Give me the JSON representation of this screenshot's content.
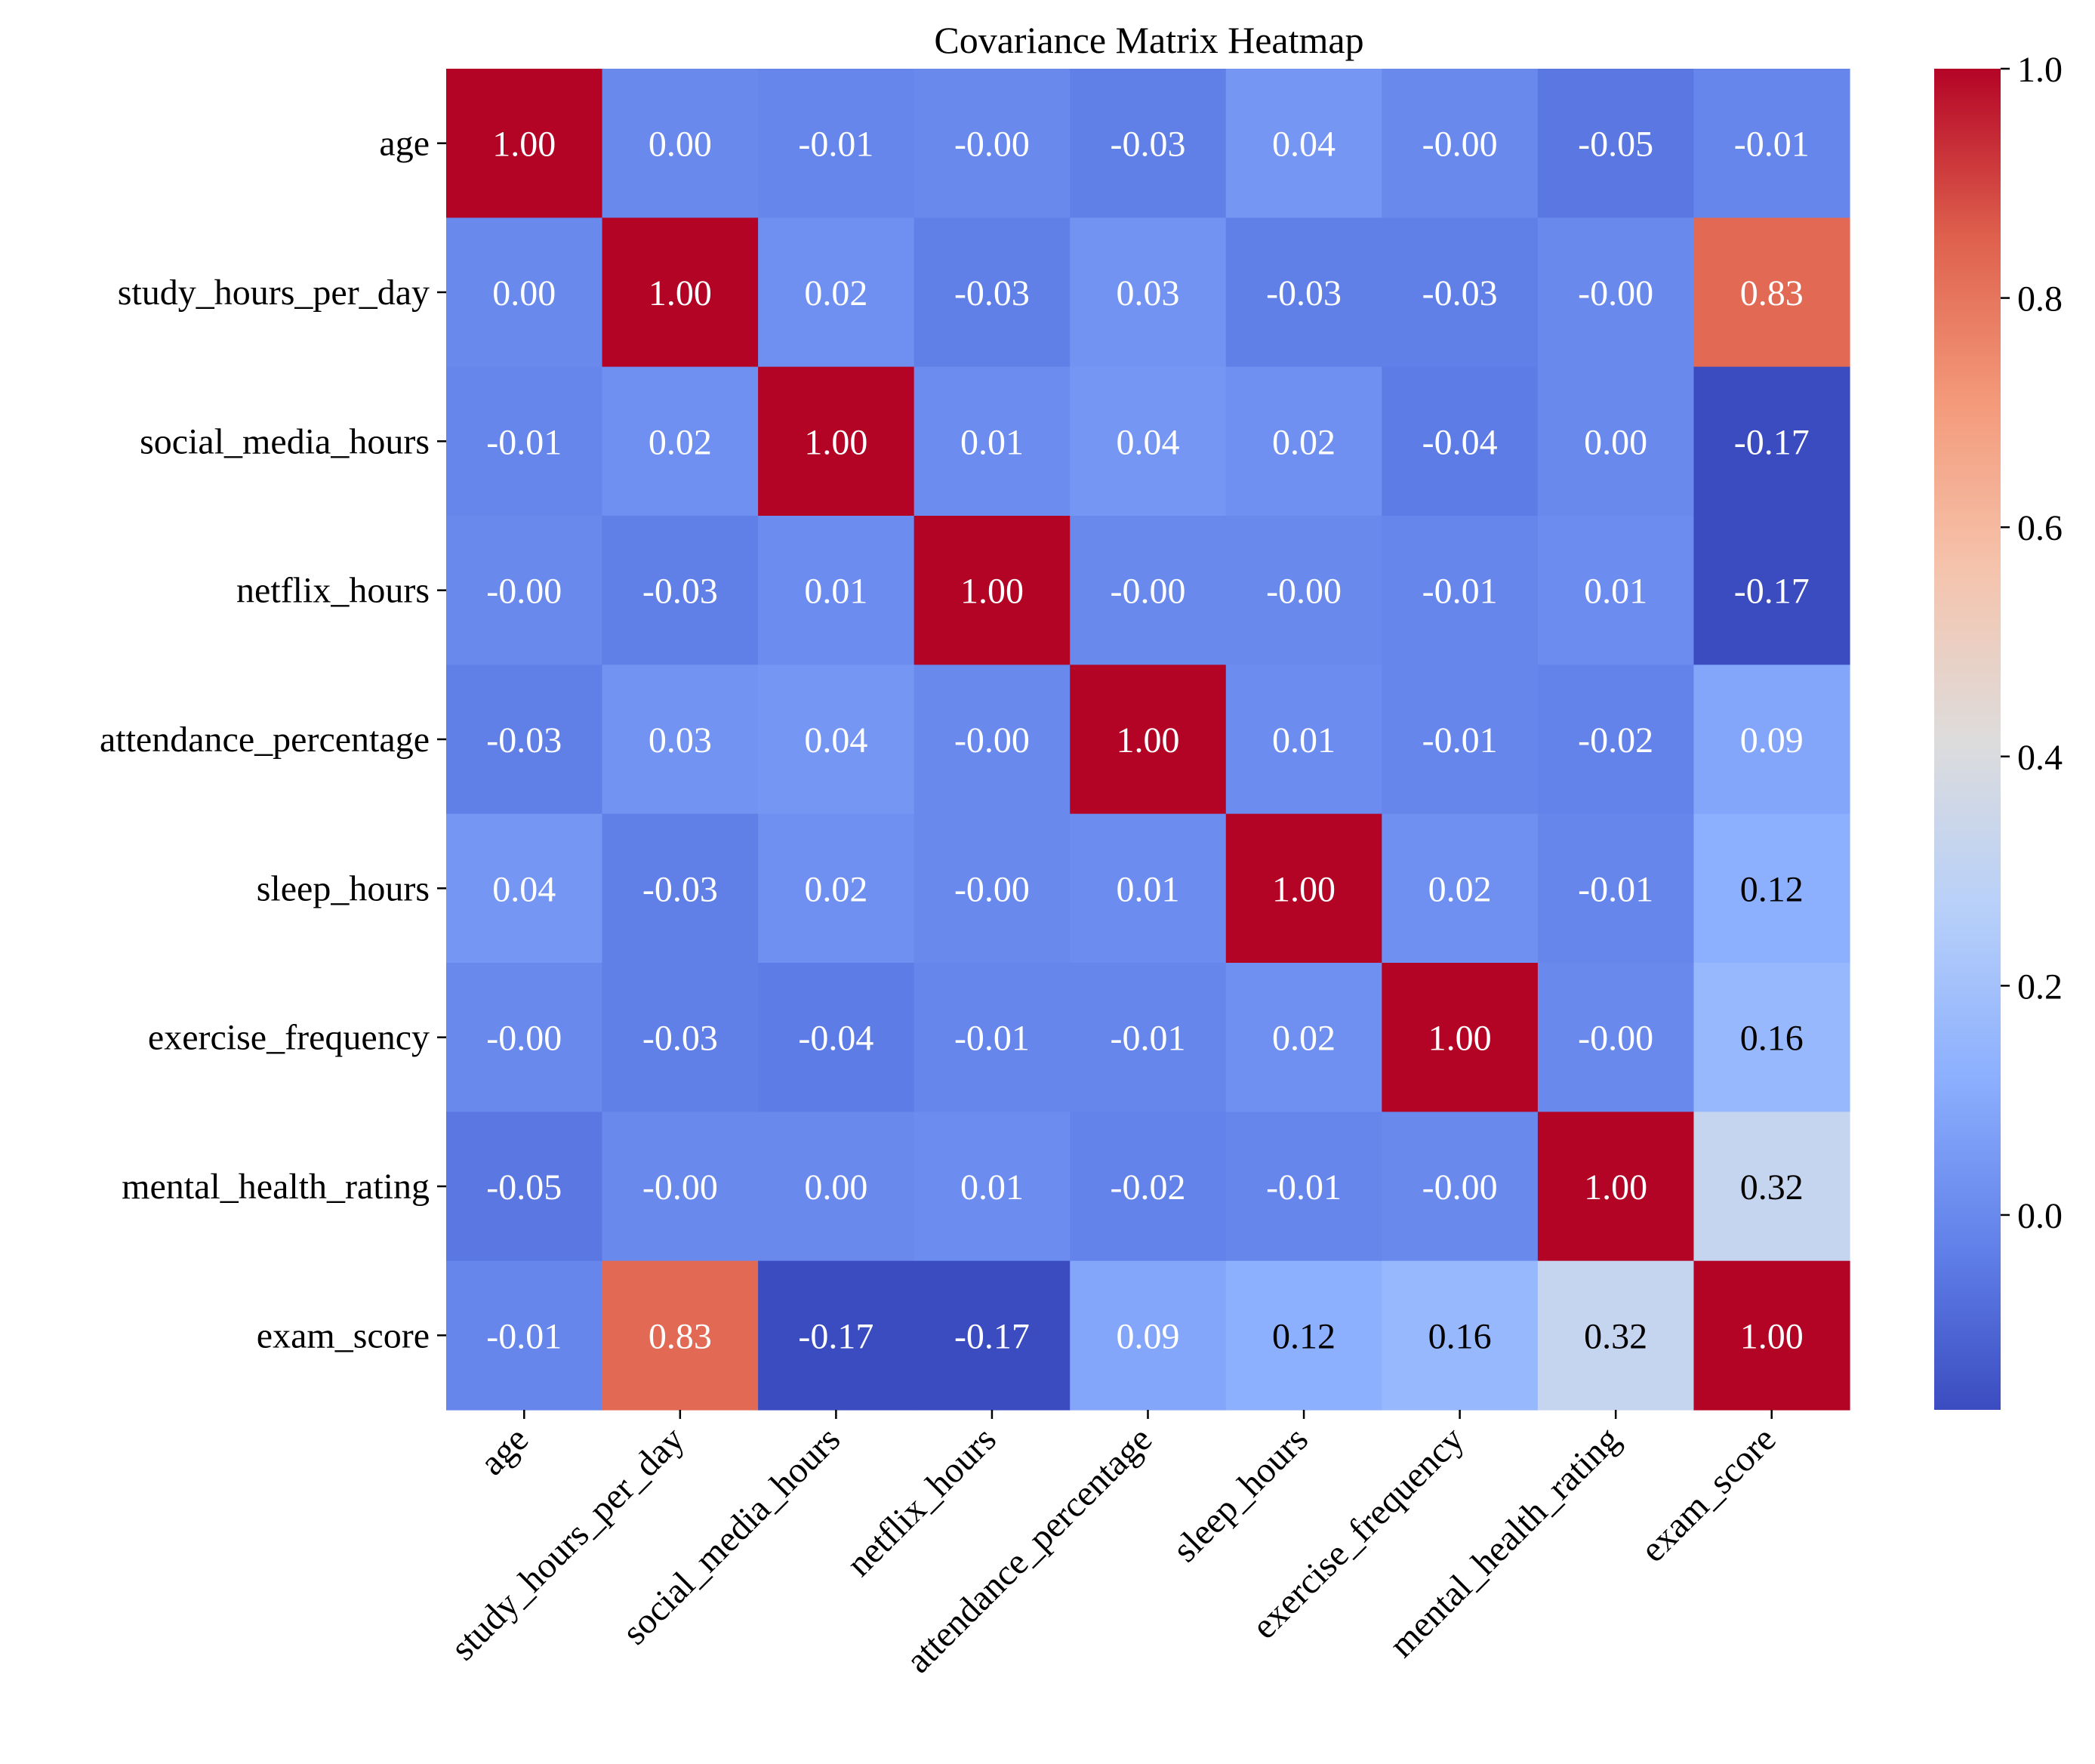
{
  "chart_data": {
    "type": "heatmap",
    "title": "Covariance Matrix Heatmap",
    "xlabel": "",
    "ylabel": "",
    "labels": [
      "age",
      "study_hours_per_day",
      "social_media_hours",
      "netflix_hours",
      "attendance_percentage",
      "sleep_hours",
      "exercise_frequency",
      "mental_health_rating",
      "exam_score"
    ],
    "values": [
      [
        1.0,
        0.0,
        -0.01,
        -0.0,
        -0.03,
        0.04,
        -0.0,
        -0.05,
        -0.01
      ],
      [
        0.0,
        1.0,
        0.02,
        -0.03,
        0.03,
        -0.03,
        -0.03,
        -0.0,
        0.83
      ],
      [
        -0.01,
        0.02,
        1.0,
        0.01,
        0.04,
        0.02,
        -0.04,
        0.0,
        -0.17
      ],
      [
        -0.0,
        -0.03,
        0.01,
        1.0,
        -0.0,
        -0.0,
        -0.01,
        0.01,
        -0.17
      ],
      [
        -0.03,
        0.03,
        0.04,
        -0.0,
        1.0,
        0.01,
        -0.01,
        -0.02,
        0.09
      ],
      [
        0.04,
        -0.03,
        0.02,
        -0.0,
        0.01,
        1.0,
        0.02,
        -0.01,
        0.12
      ],
      [
        -0.0,
        -0.03,
        -0.04,
        -0.01,
        -0.01,
        0.02,
        1.0,
        -0.0,
        0.16
      ],
      [
        -0.05,
        -0.0,
        0.0,
        0.01,
        -0.02,
        -0.01,
        -0.0,
        1.0,
        0.32
      ],
      [
        -0.01,
        0.83,
        -0.17,
        -0.17,
        0.09,
        0.12,
        0.16,
        0.32,
        1.0
      ]
    ],
    "annotations": [
      [
        "1.00",
        "0.00",
        "-0.01",
        "-0.00",
        "-0.03",
        "0.04",
        "-0.00",
        "-0.05",
        "-0.01"
      ],
      [
        "0.00",
        "1.00",
        "0.02",
        "-0.03",
        "0.03",
        "-0.03",
        "-0.03",
        "-0.00",
        "0.83"
      ],
      [
        "-0.01",
        "0.02",
        "1.00",
        "0.01",
        "0.04",
        "0.02",
        "-0.04",
        "0.00",
        "-0.17"
      ],
      [
        "-0.00",
        "-0.03",
        "0.01",
        "1.00",
        "-0.00",
        "-0.00",
        "-0.01",
        "0.01",
        "-0.17"
      ],
      [
        "-0.03",
        "0.03",
        "0.04",
        "-0.00",
        "1.00",
        "0.01",
        "-0.01",
        "-0.02",
        "0.09"
      ],
      [
        "0.04",
        "-0.03",
        "0.02",
        "-0.00",
        "0.01",
        "1.00",
        "0.02",
        "-0.01",
        "0.12"
      ],
      [
        "-0.00",
        "-0.03",
        "-0.04",
        "-0.01",
        "-0.01",
        "0.02",
        "1.00",
        "-0.00",
        "0.16"
      ],
      [
        "-0.05",
        "-0.00",
        "0.00",
        "0.01",
        "-0.02",
        "-0.01",
        "-0.00",
        "1.00",
        "0.32"
      ],
      [
        "-0.01",
        "0.83",
        "-0.17",
        "-0.17",
        "0.09",
        "0.12",
        "0.16",
        "0.32",
        "1.00"
      ]
    ],
    "colormap": "coolwarm",
    "colorbar": {
      "vmin": -0.17,
      "vmax": 1.0,
      "ticks": [
        0.0,
        0.2,
        0.4,
        0.6,
        0.8,
        1.0
      ],
      "tick_labels": [
        "0.0",
        "0.2",
        "0.4",
        "0.6",
        "0.8",
        "1.0"
      ]
    },
    "grid": false,
    "legend": "colorbar-right"
  }
}
